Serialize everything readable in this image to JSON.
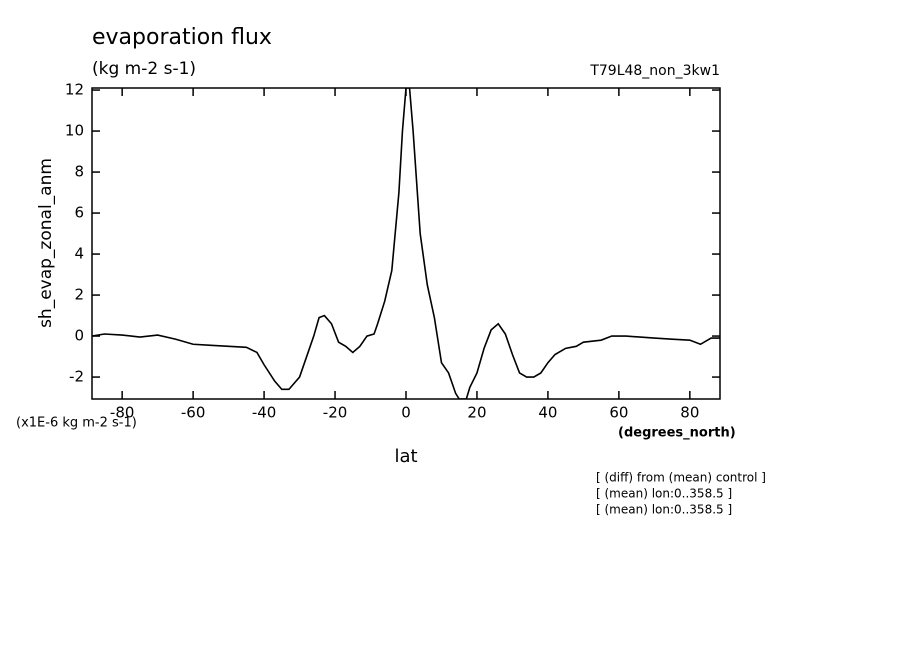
{
  "chart_data": {
    "type": "line",
    "title": "evaporation flux",
    "subtitle": "(kg m-2 s-1)",
    "run_label": "T79L48_non_3kw1",
    "y_label": "sh_evap_zonal_anm",
    "x_label": "lat",
    "y_unit_label": "(x1E-6 kg m-2 s-1)",
    "x_unit_label": "(degrees_north)",
    "notes": [
      "[ (diff) from (mean) control ]",
      "[ (mean) lon:0..358.5 ]",
      "[ (mean) lon:0..358.5 ]"
    ],
    "x": [
      -88.5,
      -85,
      -80,
      -75,
      -70,
      -65,
      -60,
      -55,
      -50,
      -45,
      -42,
      -40,
      -37,
      -35,
      -33,
      -30,
      -28,
      -26,
      -24.5,
      -23,
      -21,
      -19,
      -17,
      -15,
      -13,
      -11,
      -9,
      -8,
      -6,
      -4,
      -2,
      -1,
      0,
      1,
      2,
      4,
      6,
      8,
      10,
      12,
      14,
      15,
      17,
      18,
      20,
      22,
      24,
      26,
      28,
      30,
      32,
      34,
      36,
      38,
      40,
      42,
      45,
      48,
      50,
      55,
      58,
      62,
      70,
      75,
      80,
      83,
      86,
      88.5
    ],
    "series": [
      {
        "name": "sh_evap_zonal_anm",
        "color": "#000000",
        "values": [
          0.0,
          0.1,
          0.05,
          -0.05,
          0.05,
          -0.15,
          -0.4,
          -0.45,
          -0.5,
          -0.55,
          -0.8,
          -1.4,
          -2.2,
          -2.6,
          -2.6,
          -2.0,
          -1.0,
          0.0,
          0.9,
          1.0,
          0.6,
          -0.3,
          -0.5,
          -0.8,
          -0.5,
          0.0,
          0.1,
          0.6,
          1.7,
          3.2,
          7.0,
          10.0,
          12.1,
          12.1,
          10.0,
          5.0,
          2.5,
          0.9,
          -1.3,
          -1.8,
          -2.8,
          -3.07,
          -3.07,
          -2.5,
          -1.8,
          -0.6,
          0.3,
          0.6,
          0.1,
          -0.9,
          -1.8,
          -2.0,
          -2.0,
          -1.8,
          -1.3,
          -0.9,
          -0.6,
          -0.5,
          -0.3,
          -0.2,
          0.0,
          0.0,
          -0.1,
          -0.15,
          -0.2,
          -0.4,
          -0.1,
          -0.1
        ]
      }
    ],
    "xlim": [
      -88.5,
      88.5
    ],
    "ylim": [
      -3.07,
      12.1
    ],
    "xticks": [
      -80,
      -60,
      -40,
      -20,
      0,
      20,
      40,
      60,
      80
    ],
    "yticks": [
      -2,
      0,
      2,
      4,
      6,
      8,
      10,
      12
    ],
    "grid": false
  }
}
